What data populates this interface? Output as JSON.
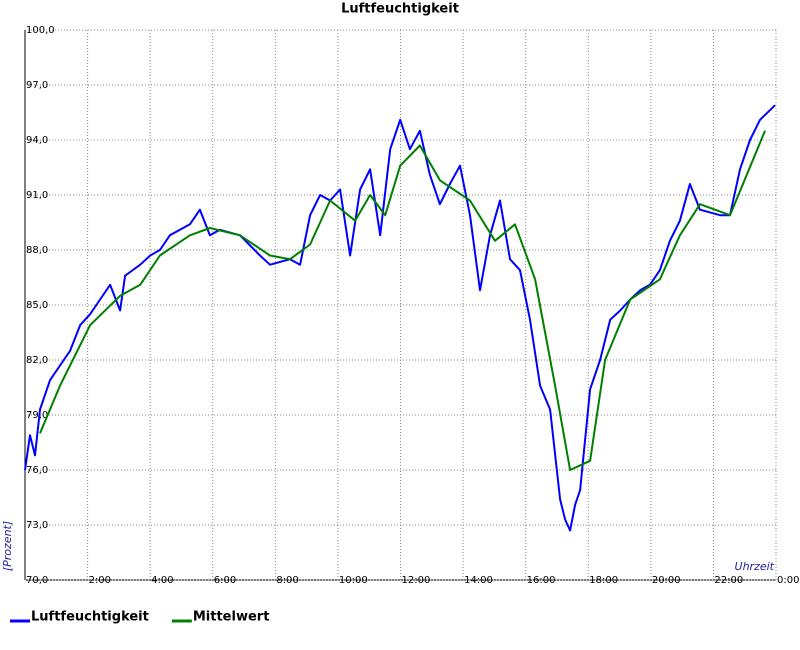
{
  "chart_data": {
    "type": "line",
    "title": "Luftfeuchtigkeit",
    "y_label": "[Prozent]",
    "x_label": "Uhrzeit",
    "xlim": [
      0,
      24
    ],
    "ylim": [
      70,
      100
    ],
    "grid": true,
    "legend": "bottom",
    "xticks": [
      {
        "value": 2,
        "label": "2:00"
      },
      {
        "value": 4,
        "label": "4:00"
      },
      {
        "value": 6,
        "label": "6:00"
      },
      {
        "value": 8,
        "label": "8:00"
      },
      {
        "value": 10,
        "label": "10:00"
      },
      {
        "value": 12,
        "label": "12:00"
      },
      {
        "value": 14,
        "label": "14:00"
      },
      {
        "value": 16,
        "label": "16:00"
      },
      {
        "value": 18,
        "label": "18:00"
      },
      {
        "value": 20,
        "label": "20:00"
      },
      {
        "value": 22,
        "label": "22:00"
      },
      {
        "value": 24,
        "label": "0:00"
      }
    ],
    "yticks": [
      {
        "value": 70,
        "label": "70,0"
      },
      {
        "value": 73,
        "label": "73,0"
      },
      {
        "value": 76,
        "label": "76,0"
      },
      {
        "value": 79,
        "label": "79,0"
      },
      {
        "value": 82,
        "label": "82,0"
      },
      {
        "value": 85,
        "label": "85,0"
      },
      {
        "value": 88,
        "label": "88,0"
      },
      {
        "value": 91,
        "label": "91,0"
      },
      {
        "value": 94,
        "label": "94,0"
      },
      {
        "value": 97,
        "label": "97,0"
      },
      {
        "value": 100,
        "label": "100,0"
      }
    ],
    "series": [
      {
        "name": "Luftfeuchtigkeit",
        "color": "#0000ff",
        "x": [
          0.0,
          0.16,
          0.32,
          0.48,
          0.8,
          1.12,
          1.44,
          1.76,
          2.08,
          2.4,
          2.72,
          3.04,
          3.2,
          3.68,
          4.0,
          4.31,
          4.63,
          4.95,
          5.27,
          5.59,
          5.91,
          6.23,
          6.87,
          7.51,
          7.83,
          8.47,
          8.79,
          9.11,
          9.43,
          9.75,
          10.07,
          10.39,
          10.71,
          11.03,
          11.35,
          11.67,
          11.99,
          12.3,
          12.62,
          12.94,
          13.26,
          13.58,
          13.9,
          14.22,
          14.54,
          14.86,
          15.18,
          15.5,
          15.82,
          16.14,
          16.46,
          16.78,
          17.1,
          17.26,
          17.42,
          17.58,
          17.74,
          18.06,
          18.38,
          18.7,
          19.02,
          19.34,
          19.66,
          19.97,
          20.29,
          20.61,
          20.93,
          21.25,
          21.57,
          22.21,
          22.53,
          22.85,
          23.17,
          23.49,
          23.97
        ],
        "values": [
          76.0,
          77.9,
          76.8,
          79.3,
          80.9,
          81.7,
          82.5,
          83.9,
          84.5,
          85.3,
          86.1,
          84.7,
          86.6,
          87.2,
          87.7,
          88.0,
          88.8,
          89.1,
          89.4,
          90.2,
          88.8,
          89.1,
          88.8,
          87.7,
          87.2,
          87.5,
          87.2,
          89.9,
          91.0,
          90.7,
          91.3,
          87.7,
          91.3,
          92.4,
          88.8,
          93.5,
          95.1,
          93.5,
          94.5,
          92.1,
          90.5,
          91.6,
          92.6,
          89.9,
          85.8,
          88.8,
          90.7,
          87.5,
          86.9,
          84.2,
          80.6,
          79.3,
          74.4,
          73.3,
          72.7,
          74.1,
          74.9,
          80.4,
          82.0,
          84.2,
          84.7,
          85.3,
          85.8,
          86.1,
          86.9,
          88.5,
          89.6,
          91.6,
          90.2,
          89.9,
          89.9,
          92.4,
          94.0,
          95.1,
          95.9
        ]
      },
      {
        "name": "Mittelwert",
        "color": "#008000",
        "x": [
          0.48,
          1.12,
          2.08,
          3.04,
          3.68,
          4.31,
          5.27,
          5.91,
          6.87,
          7.83,
          8.47,
          9.11,
          9.75,
          10.55,
          11.03,
          11.51,
          11.99,
          12.62,
          13.26,
          14.22,
          15.02,
          15.66,
          16.3,
          16.94,
          17.42,
          18.06,
          18.54,
          19.34,
          20.29,
          20.93,
          21.57,
          22.53,
          23.65
        ],
        "values": [
          78.0,
          80.6,
          83.9,
          85.5,
          86.1,
          87.7,
          88.8,
          89.2,
          88.8,
          87.7,
          87.5,
          88.3,
          90.7,
          89.6,
          91.0,
          89.9,
          92.6,
          93.7,
          91.8,
          90.7,
          88.5,
          89.4,
          86.4,
          80.6,
          76.0,
          76.5,
          82.0,
          85.3,
          86.4,
          88.8,
          90.5,
          89.9,
          94.5
        ]
      }
    ]
  }
}
